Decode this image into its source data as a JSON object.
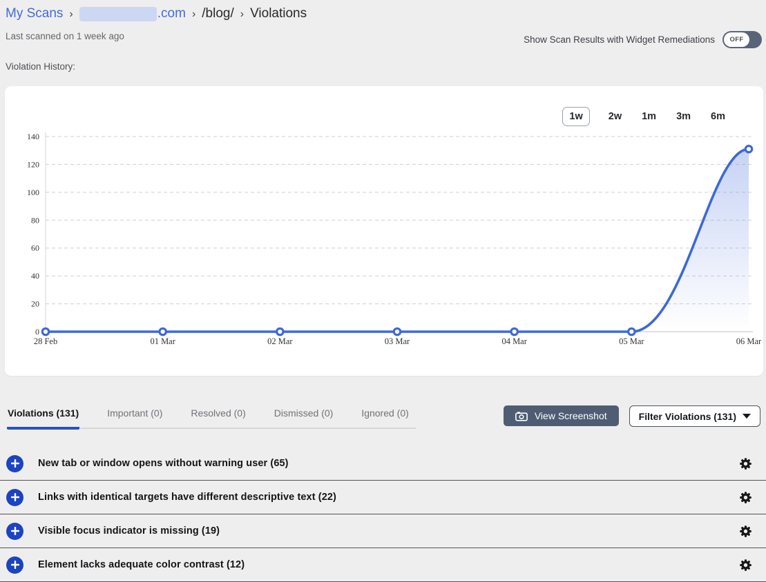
{
  "breadcrumb": {
    "root": "My Scans",
    "separator": "›",
    "domain_redacted": true,
    "domain_suffix": ".com",
    "path": "/blog/",
    "current": "Violations"
  },
  "meta": {
    "last_scanned": "Last scanned on 1 week ago"
  },
  "remediation_toggle": {
    "label": "Show Scan Results with Widget Remediations",
    "state": "OFF"
  },
  "history": {
    "label": "Violation History:",
    "ranges": [
      "1w",
      "2w",
      "1m",
      "3m",
      "6m"
    ],
    "active_range": "1w"
  },
  "chart_data": {
    "type": "line",
    "title": "Violation History",
    "x": [
      "28 Feb",
      "01 Mar",
      "02 Mar",
      "03 Mar",
      "04 Mar",
      "05 Mar",
      "06 Mar"
    ],
    "series": [
      {
        "name": "Violations",
        "values": [
          0,
          0,
          0,
          0,
          0,
          0,
          131
        ]
      }
    ],
    "ylim": [
      0,
      140
    ],
    "yticks": [
      0,
      20,
      40,
      60,
      80,
      100,
      120,
      140
    ],
    "grid": true,
    "legend": false,
    "line_color": "#3c69d7",
    "marker": "open-circle",
    "fill": "gradient-under-rise"
  },
  "tabs": [
    {
      "label": "Violations (131)",
      "active": true
    },
    {
      "label": "Important (0)",
      "active": false
    },
    {
      "label": "Resolved (0)",
      "active": false
    },
    {
      "label": "Dismissed (0)",
      "active": false
    },
    {
      "label": "Ignored (0)",
      "active": false
    }
  ],
  "actions": {
    "view_screenshot": "View Screenshot",
    "filter": "Filter Violations (131)"
  },
  "violations": [
    {
      "label": "New tab or window opens without warning user (65)"
    },
    {
      "label": "Links with identical targets have different descriptive text (22)"
    },
    {
      "label": "Visible focus indicator is missing (19)"
    },
    {
      "label": "Element lacks adequate color contrast (12)"
    }
  ],
  "colors": {
    "accent_blue": "#3c69d7",
    "link_blue": "#3d6ce0",
    "plus_circle_blue": "#1c44c0",
    "tab_underline_blue": "#2850c8",
    "slate_button": "#4e5d74",
    "page_background": "#efeeee"
  }
}
